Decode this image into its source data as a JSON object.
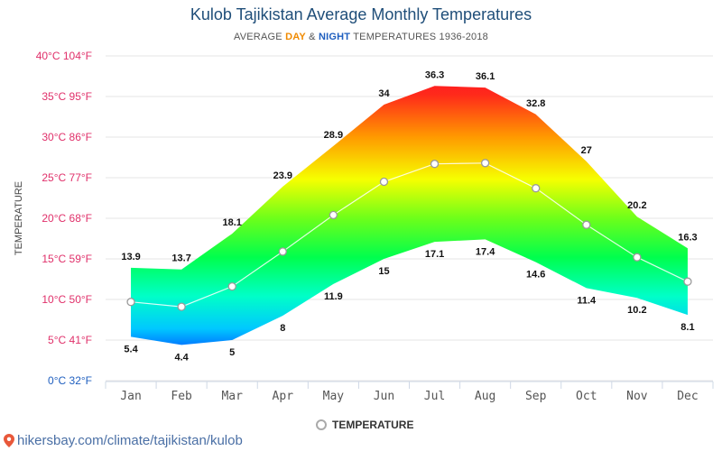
{
  "header": {
    "title": "Kulob Tajikistan Average Monthly Temperatures",
    "subtitle_prefix": "AVERAGE",
    "subtitle_day": "DAY",
    "subtitle_amp": "&",
    "subtitle_night": "NIGHT",
    "subtitle_suffix": "TEMPERATURES 1936-2018"
  },
  "legend": {
    "label": "TEMPERATURE"
  },
  "footer": {
    "url": "hikersbay.com/climate/tajikistan/kulob"
  },
  "colors": {
    "title": "#1f4e79",
    "day": "#f08a00",
    "night": "#1f5fbf",
    "axis_label": "#e0306a"
  },
  "chart_data": {
    "type": "area",
    "ylabel": "TEMPERATURE",
    "ylim": [
      0,
      40
    ],
    "grid": true,
    "legend_placement": "bottom",
    "y_ticks": [
      {
        "value": 40,
        "label": "40°C 104°F"
      },
      {
        "value": 35,
        "label": "35°C 95°F"
      },
      {
        "value": 30,
        "label": "30°C 86°F"
      },
      {
        "value": 25,
        "label": "25°C 77°F"
      },
      {
        "value": 20,
        "label": "20°C 68°F"
      },
      {
        "value": 15,
        "label": "15°C 59°F"
      },
      {
        "value": 10,
        "label": "10°C 50°F"
      },
      {
        "value": 5,
        "label": "5°C 41°F"
      },
      {
        "value": 0,
        "label": "0°C 32°F"
      }
    ],
    "categories": [
      "Jan",
      "Feb",
      "Mar",
      "Apr",
      "May",
      "Jun",
      "Jul",
      "Aug",
      "Sep",
      "Oct",
      "Nov",
      "Dec"
    ],
    "series": [
      {
        "key": "day",
        "values": [
          13.9,
          13.7,
          18.1,
          23.9,
          28.9,
          34,
          36.3,
          36.1,
          32.8,
          27,
          20.2,
          16.3
        ]
      },
      {
        "key": "night",
        "values": [
          5.4,
          4.4,
          5,
          8,
          11.9,
          15,
          17.1,
          17.4,
          14.6,
          11.4,
          10.2,
          8.1
        ]
      },
      {
        "name": "TEMPERATURE",
        "values": [
          9.7,
          9.1,
          11.6,
          15.9,
          20.4,
          24.5,
          26.7,
          26.8,
          23.7,
          19.2,
          15.2,
          12.2
        ]
      }
    ]
  }
}
